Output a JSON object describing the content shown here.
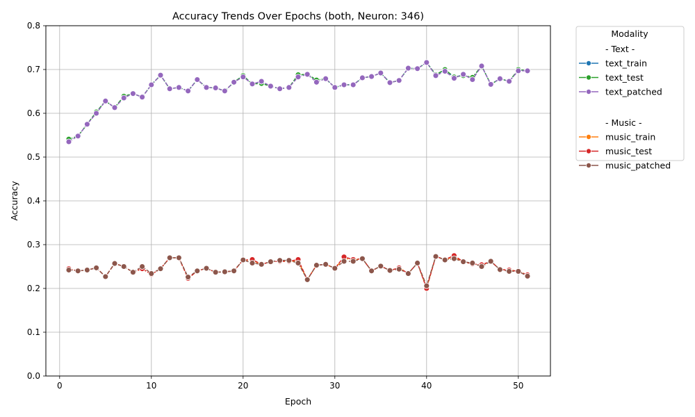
{
  "chart_data": {
    "type": "line",
    "title": "Accuracy Trends Over Epochs (both, Neuron: 346)",
    "xlabel": "Epoch",
    "ylabel": "Accuracy",
    "xlim": [
      -1.5,
      53.5
    ],
    "ylim": [
      0.0,
      0.8
    ],
    "xticks": [
      0,
      10,
      20,
      30,
      40,
      50
    ],
    "yticks": [
      0.0,
      0.1,
      0.2,
      0.3,
      0.4,
      0.5,
      0.6,
      0.7,
      0.8
    ],
    "grid": true,
    "legend": {
      "title": "Modality",
      "placement": "outside-right",
      "groups": [
        {
          "header": "- Text -",
          "series": [
            "text_train",
            "text_test",
            "text_patched"
          ]
        },
        {
          "header": "- Music -",
          "series": [
            "music_train",
            "music_test",
            "music_patched"
          ]
        }
      ]
    },
    "x": [
      1,
      2,
      3,
      4,
      5,
      6,
      7,
      8,
      9,
      10,
      11,
      12,
      13,
      14,
      15,
      16,
      17,
      18,
      19,
      20,
      21,
      22,
      23,
      24,
      25,
      26,
      27,
      28,
      29,
      30,
      31,
      32,
      33,
      34,
      35,
      36,
      37,
      38,
      39,
      40,
      41,
      42,
      43,
      44,
      45,
      46,
      47,
      48,
      49,
      50,
      51
    ],
    "series": [
      {
        "name": "text_train",
        "color": "#1f77b4",
        "values": [
          0.54,
          0.548,
          0.575,
          0.603,
          0.628,
          0.613,
          0.638,
          0.645,
          0.637,
          0.665,
          0.687,
          0.656,
          0.659,
          0.651,
          0.677,
          0.659,
          0.658,
          0.651,
          0.671,
          0.686,
          0.667,
          0.669,
          0.662,
          0.656,
          0.659,
          0.687,
          0.689,
          0.676,
          0.679,
          0.659,
          0.665,
          0.665,
          0.681,
          0.684,
          0.692,
          0.67,
          0.675,
          0.703,
          0.702,
          0.716,
          0.688,
          0.699,
          0.683,
          0.687,
          0.681,
          0.708,
          0.666,
          0.679,
          0.673,
          0.699,
          0.697
        ]
      },
      {
        "name": "text_test",
        "color": "#2ca02c",
        "values": [
          0.541,
          0.548,
          0.575,
          0.603,
          0.628,
          0.613,
          0.639,
          0.645,
          0.637,
          0.665,
          0.687,
          0.656,
          0.659,
          0.651,
          0.677,
          0.659,
          0.658,
          0.651,
          0.671,
          0.686,
          0.667,
          0.668,
          0.662,
          0.656,
          0.659,
          0.688,
          0.689,
          0.676,
          0.679,
          0.659,
          0.665,
          0.665,
          0.681,
          0.684,
          0.692,
          0.67,
          0.675,
          0.703,
          0.702,
          0.716,
          0.688,
          0.7,
          0.683,
          0.686,
          0.682,
          0.708,
          0.666,
          0.679,
          0.673,
          0.7,
          0.697
        ]
      },
      {
        "name": "text_patched",
        "color": "#9467bd",
        "values": [
          0.535,
          0.548,
          0.575,
          0.6,
          0.628,
          0.613,
          0.635,
          0.645,
          0.637,
          0.665,
          0.687,
          0.656,
          0.659,
          0.651,
          0.677,
          0.659,
          0.658,
          0.651,
          0.671,
          0.683,
          0.667,
          0.673,
          0.662,
          0.656,
          0.659,
          0.683,
          0.689,
          0.671,
          0.679,
          0.659,
          0.665,
          0.665,
          0.681,
          0.684,
          0.692,
          0.67,
          0.675,
          0.703,
          0.702,
          0.716,
          0.686,
          0.696,
          0.68,
          0.689,
          0.677,
          0.708,
          0.666,
          0.679,
          0.673,
          0.697,
          0.697
        ]
      },
      {
        "name": "music_train",
        "color": "#ff7f0e",
        "values": [
          0.245,
          0.24,
          0.242,
          0.247,
          0.227,
          0.257,
          0.25,
          0.237,
          0.245,
          0.232,
          0.245,
          0.27,
          0.27,
          0.223,
          0.24,
          0.246,
          0.237,
          0.238,
          0.24,
          0.265,
          0.264,
          0.255,
          0.261,
          0.262,
          0.262,
          0.262,
          0.22,
          0.253,
          0.255,
          0.246,
          0.269,
          0.265,
          0.268,
          0.24,
          0.251,
          0.241,
          0.247,
          0.234,
          0.258,
          0.201,
          0.273,
          0.266,
          0.272,
          0.261,
          0.256,
          0.253,
          0.262,
          0.243,
          0.242,
          0.239,
          0.231
        ]
      },
      {
        "name": "music_test",
        "color": "#d62728",
        "values": [
          0.245,
          0.24,
          0.242,
          0.247,
          0.227,
          0.257,
          0.25,
          0.237,
          0.245,
          0.232,
          0.245,
          0.27,
          0.27,
          0.223,
          0.24,
          0.246,
          0.237,
          0.238,
          0.24,
          0.265,
          0.266,
          0.255,
          0.261,
          0.262,
          0.262,
          0.266,
          0.22,
          0.253,
          0.255,
          0.246,
          0.272,
          0.266,
          0.268,
          0.24,
          0.251,
          0.241,
          0.247,
          0.234,
          0.258,
          0.2,
          0.273,
          0.266,
          0.275,
          0.261,
          0.256,
          0.254,
          0.262,
          0.243,
          0.242,
          0.239,
          0.231
        ]
      },
      {
        "name": "music_patched",
        "color": "#8c564b",
        "values": [
          0.242,
          0.24,
          0.242,
          0.247,
          0.227,
          0.257,
          0.25,
          0.237,
          0.25,
          0.234,
          0.245,
          0.27,
          0.27,
          0.226,
          0.24,
          0.246,
          0.237,
          0.238,
          0.24,
          0.265,
          0.258,
          0.255,
          0.261,
          0.264,
          0.264,
          0.258,
          0.22,
          0.253,
          0.255,
          0.246,
          0.262,
          0.262,
          0.268,
          0.24,
          0.251,
          0.241,
          0.244,
          0.234,
          0.258,
          0.206,
          0.273,
          0.265,
          0.268,
          0.261,
          0.258,
          0.25,
          0.262,
          0.243,
          0.239,
          0.239,
          0.228
        ]
      }
    ]
  }
}
